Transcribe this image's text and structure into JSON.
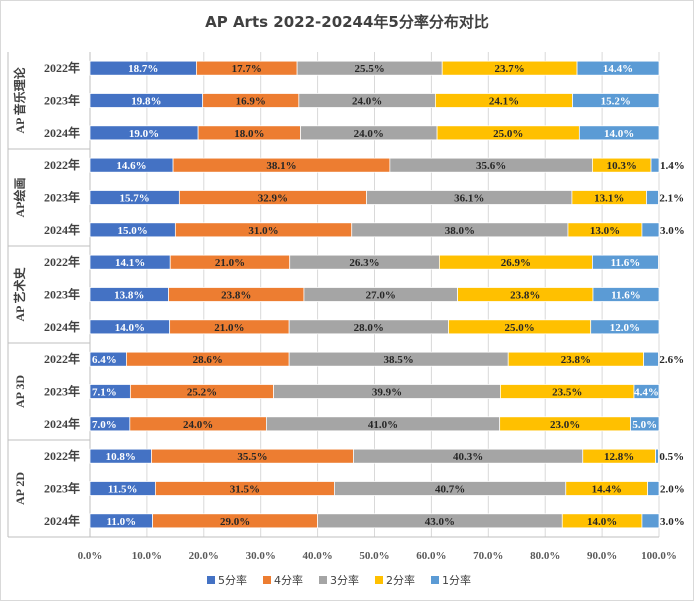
{
  "chart_data": {
    "type": "bar",
    "stacked": "percent",
    "orientation": "horizontal",
    "title": "AP Arts 2022-20244年5分率分布对比",
    "xlabel": "",
    "ylabel": "",
    "xlim": [
      0,
      100
    ],
    "x_ticks": [
      "0.0%",
      "10.0%",
      "20.0%",
      "30.0%",
      "40.0%",
      "50.0%",
      "60.0%",
      "70.0%",
      "80.0%",
      "90.0%",
      "100.0%"
    ],
    "legend_position": "bottom",
    "series_names": [
      "5分率",
      "4分率",
      "3分率",
      "2分率",
      "1分率"
    ],
    "series_colors": [
      "#4472C4",
      "#ED7D31",
      "#A5A5A5",
      "#FFC000",
      "#5B9BD5"
    ],
    "groups": [
      {
        "name": "AP 音乐理论",
        "rows": [
          {
            "year": "2022年",
            "values": [
              18.7,
              17.7,
              25.5,
              23.7,
              14.4
            ],
            "labels": [
              "18.7%",
              "17.7%",
              "25.5%",
              "23.7%",
              "14.4%"
            ]
          },
          {
            "year": "2023年",
            "values": [
              19.8,
              16.9,
              24.0,
              24.1,
              15.2
            ],
            "labels": [
              "19.8%",
              "16.9%",
              "24.0%",
              "24.1%",
              "15.2%"
            ]
          },
          {
            "year": "2024年",
            "values": [
              19.0,
              18.0,
              24.0,
              25.0,
              14.0
            ],
            "labels": [
              "19.0%",
              "18.0%",
              "24.0%",
              "25.0%",
              "14.0%"
            ]
          }
        ]
      },
      {
        "name": "AP绘画",
        "rows": [
          {
            "year": "2022年",
            "values": [
              14.6,
              38.1,
              35.6,
              10.3,
              1.4
            ],
            "labels": [
              "14.6%",
              "38.1%",
              "35.6%",
              "10.3%",
              "1.4%"
            ]
          },
          {
            "year": "2023年",
            "values": [
              15.7,
              32.9,
              36.1,
              13.1,
              2.1
            ],
            "labels": [
              "15.7%",
              "32.9%",
              "36.1%",
              "13.1%",
              "2.1%"
            ]
          },
          {
            "year": "2024年",
            "values": [
              15.0,
              31.0,
              38.0,
              13.0,
              3.0
            ],
            "labels": [
              "15.0%",
              "31.0%",
              "38.0%",
              "13.0%",
              "3.0%"
            ]
          }
        ]
      },
      {
        "name": "AP 艺术史",
        "rows": [
          {
            "year": "2022年",
            "values": [
              14.1,
              21.0,
              26.3,
              26.9,
              11.6
            ],
            "labels": [
              "14.1%",
              "21.0%",
              "26.3%",
              "26.9%",
              "11.6%"
            ]
          },
          {
            "year": "2023年",
            "values": [
              13.8,
              23.8,
              27.0,
              23.8,
              11.6
            ],
            "labels": [
              "13.8%",
              "23.8%",
              "27.0%",
              "23.8%",
              "11.6%"
            ]
          },
          {
            "year": "2024年",
            "values": [
              14.0,
              21.0,
              28.0,
              25.0,
              12.0
            ],
            "labels": [
              "14.0%",
              "21.0%",
              "28.0%",
              "25.0%",
              "12.0%"
            ]
          }
        ]
      },
      {
        "name": "AP 3D",
        "rows": [
          {
            "year": "2022年",
            "values": [
              6.4,
              28.6,
              38.5,
              23.8,
              2.6
            ],
            "labels": [
              "6.4%",
              "28.6%",
              "38.5%",
              "23.8%",
              "2.6%"
            ]
          },
          {
            "year": "2023年",
            "values": [
              7.1,
              25.2,
              39.9,
              23.5,
              4.4
            ],
            "labels": [
              "7.1%",
              "25.2%",
              "39.9%",
              "23.5%",
              "4.4%"
            ]
          },
          {
            "year": "2024年",
            "values": [
              7.0,
              24.0,
              41.0,
              23.0,
              5.0
            ],
            "labels": [
              "7.0%",
              "24.0%",
              "41.0%",
              "23.0%",
              "5.0%"
            ]
          }
        ]
      },
      {
        "name": "AP 2D",
        "rows": [
          {
            "year": "2022年",
            "values": [
              10.8,
              35.5,
              40.3,
              12.8,
              0.5
            ],
            "labels": [
              "10.8%",
              "35.5%",
              "40.3%",
              "12.8%",
              "0.5%"
            ]
          },
          {
            "year": "2023年",
            "values": [
              11.5,
              31.5,
              40.7,
              14.4,
              2.0
            ],
            "labels": [
              "11.5%",
              "31.5%",
              "40.7%",
              "14.4%",
              "2.0%"
            ]
          },
          {
            "year": "2024年",
            "values": [
              11.0,
              29.0,
              43.0,
              14.0,
              3.0
            ],
            "labels": [
              "11.0%",
              "29.0%",
              "43.0%",
              "14.0%",
              "3.0%"
            ]
          }
        ]
      }
    ]
  }
}
